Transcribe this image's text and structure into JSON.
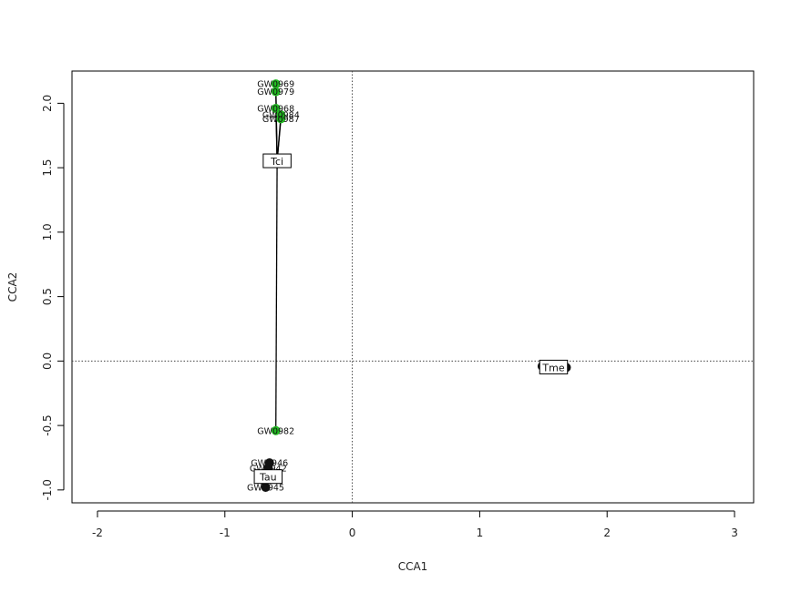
{
  "chart_data": {
    "type": "scatter",
    "title": "",
    "xlabel": "CCA1",
    "ylabel": "CCA2",
    "xlim": [
      -2.2,
      3.15
    ],
    "ylim": [
      -1.1,
      2.25
    ],
    "x_ticks": [
      -2,
      -1,
      0,
      1,
      2,
      3
    ],
    "y_ticks": [
      -1.0,
      -0.5,
      0.0,
      0.5,
      1.0,
      1.5,
      2.0
    ],
    "x_tick_labels": [
      "-2",
      "-1",
      "0",
      "1",
      "2",
      "3"
    ],
    "y_tick_labels": [
      "-1.0",
      "-0.5",
      "0.0",
      "0.5",
      "1.0",
      "1.5",
      "2.0"
    ],
    "reference_lines": {
      "x": 0,
      "y": 0,
      "style": "dotted"
    },
    "grid": false,
    "colors": {
      "green_points": "#22bb22",
      "black_points": "#111111",
      "frame": "#000000"
    },
    "groups": [
      {
        "name": "Tci",
        "centroid": {
          "x": -0.59,
          "y": 1.55
        },
        "color": "#22bb22",
        "points": [
          {
            "label": "GW0969",
            "x": -0.6,
            "y": 2.15
          },
          {
            "label": "GW0979",
            "x": -0.6,
            "y": 2.09
          },
          {
            "label": "GW0968",
            "x": -0.6,
            "y": 1.96
          },
          {
            "label": "GW0984",
            "x": -0.56,
            "y": 1.91
          },
          {
            "label": "GW0987",
            "x": -0.56,
            "y": 1.88
          },
          {
            "label": "GW0982",
            "x": -0.6,
            "y": -0.54
          }
        ]
      },
      {
        "name": "Tau",
        "centroid": {
          "x": -0.66,
          "y": -0.9
        },
        "color": "#111111",
        "points": [
          {
            "label": "GW0946",
            "x": -0.65,
            "y": -0.79
          },
          {
            "label": "GW0942",
            "x": -0.66,
            "y": -0.83
          },
          {
            "label": "",
            "x": -0.68,
            "y": -0.87
          },
          {
            "label": "",
            "x": -0.69,
            "y": -0.9
          },
          {
            "label": "",
            "x": -0.69,
            "y": -0.93
          },
          {
            "label": "GW0945",
            "x": -0.68,
            "y": -0.98
          }
        ]
      },
      {
        "name": "Tme",
        "centroid": {
          "x": 1.58,
          "y": -0.05
        },
        "color": "#111111",
        "points": [
          {
            "label": "",
            "x": 1.49,
            "y": -0.04
          },
          {
            "label": "",
            "x": 1.68,
            "y": -0.05
          }
        ]
      }
    ]
  }
}
